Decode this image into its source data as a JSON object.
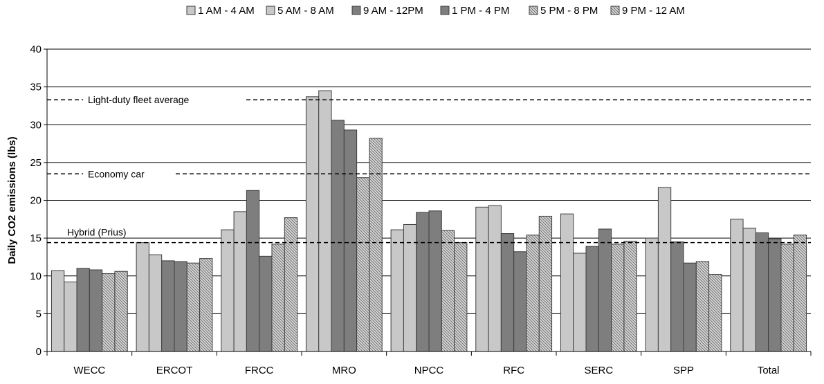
{
  "chart_data": {
    "type": "bar",
    "title": "",
    "xlabel": "",
    "ylabel": "Daily CO2 emissions (lbs)",
    "ylim": [
      0,
      40
    ],
    "yticks": [
      0,
      5,
      10,
      15,
      20,
      25,
      30,
      35,
      40
    ],
    "grid": true,
    "legend_position": "top",
    "categories": [
      "WECC",
      "ERCOT",
      "FRCC",
      "MRO",
      "NPCC",
      "RFC",
      "SERC",
      "SPP",
      "Total"
    ],
    "series": [
      {
        "name": "1 AM - 4 AM",
        "pattern": "light-solid",
        "values": [
          10.7,
          14.4,
          16.1,
          33.7,
          16.1,
          19.1,
          18.2,
          15.0,
          17.5
        ]
      },
      {
        "name": "5 AM - 8 AM",
        "pattern": "light-solid",
        "values": [
          9.2,
          12.8,
          18.5,
          34.5,
          16.8,
          19.3,
          13.0,
          21.7,
          16.3
        ]
      },
      {
        "name": "9 AM - 12PM",
        "pattern": "dark-solid",
        "values": [
          11.0,
          12.0,
          21.3,
          30.6,
          18.4,
          15.6,
          13.9,
          14.5,
          15.7
        ]
      },
      {
        "name": "1 PM - 4 PM",
        "pattern": "dark-solid",
        "values": [
          10.8,
          11.9,
          12.6,
          29.3,
          18.6,
          13.2,
          16.2,
          11.7,
          14.9
        ]
      },
      {
        "name": "5 PM - 8 PM",
        "pattern": "hatch",
        "values": [
          10.3,
          11.7,
          14.2,
          23.0,
          16.0,
          15.4,
          14.2,
          11.9,
          14.2
        ]
      },
      {
        "name": "9 PM - 12 AM",
        "pattern": "hatch",
        "values": [
          10.6,
          12.3,
          17.7,
          28.2,
          14.4,
          17.9,
          14.6,
          10.2,
          15.4
        ]
      }
    ],
    "reference_lines": [
      {
        "label": "Light-duty fleet average",
        "value": 33.3
      },
      {
        "label": "Economy car",
        "value": 23.5
      },
      {
        "label": "Hybrid (Prius)",
        "value": 14.4
      }
    ]
  }
}
